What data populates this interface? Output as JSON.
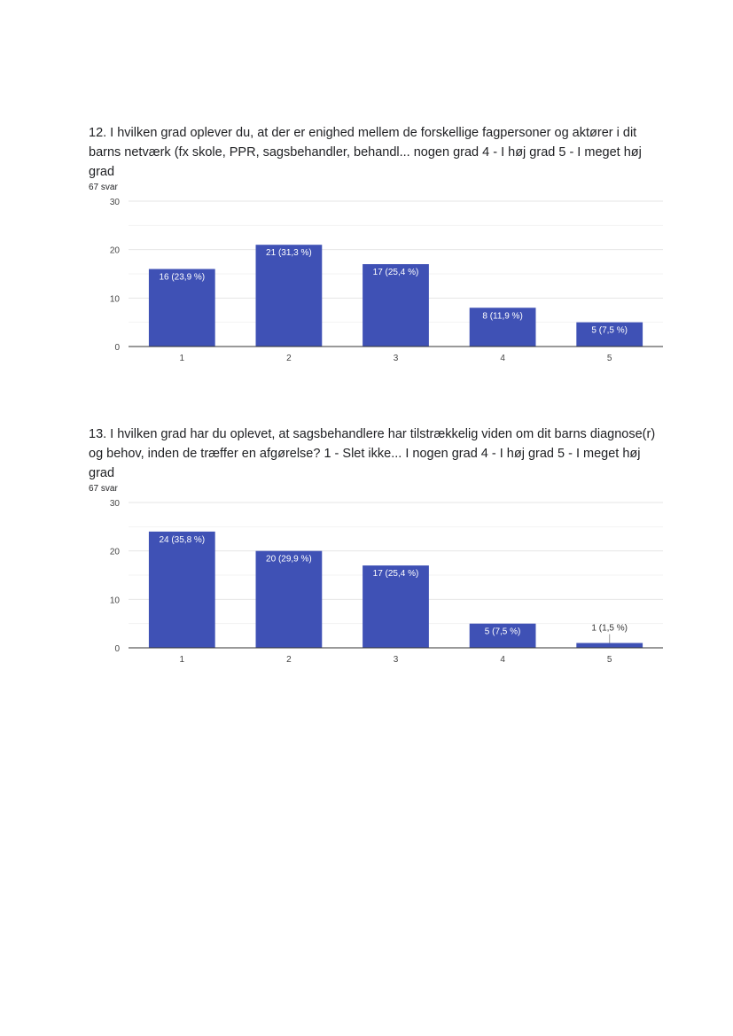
{
  "questions": [
    {
      "title": "12. I hvilken grad oplever du, at der er enighed mellem de forskellige fagpersoner og aktører i dit barns netværk (fx skole, PPR, sagsbehandler, behandl... nogen grad  4 - I høj grad  5 - I meget høj grad",
      "responses": "67 svar"
    },
    {
      "title": "13. I hvilken grad har du oplevet, at sagsbehandlere har tilstrækkelig viden om dit barns diagnose(r) og behov, inden de træffer en afgørelse?  1 - Slet ikke... I nogen grad  4 - I høj grad  5 - I meget høj grad",
      "responses": "67 svar"
    }
  ],
  "chart_data": [
    {
      "type": "bar",
      "categories": [
        "1",
        "2",
        "3",
        "4",
        "5"
      ],
      "values": [
        16,
        21,
        17,
        8,
        5
      ],
      "data_labels": [
        "16 (23,9 %)",
        "21 (31,3 %)",
        "17 (25,4 %)",
        "8 (11,9 %)",
        "5 (7,5 %)"
      ],
      "yticks": [
        "0",
        "10",
        "20",
        "30"
      ],
      "ylim": [
        0,
        30
      ],
      "grid": true,
      "bar_color": "#3f51b5"
    },
    {
      "type": "bar",
      "categories": [
        "1",
        "2",
        "3",
        "4",
        "5"
      ],
      "values": [
        24,
        20,
        17,
        5,
        1
      ],
      "data_labels": [
        "24 (35,8 %)",
        "20 (29,9 %)",
        "17 (25,4 %)",
        "5 (7,5 %)",
        "1 (1,5 %)"
      ],
      "yticks": [
        "0",
        "10",
        "20",
        "30"
      ],
      "ylim": [
        0,
        30
      ],
      "grid": true,
      "bar_color": "#3f51b5"
    }
  ]
}
